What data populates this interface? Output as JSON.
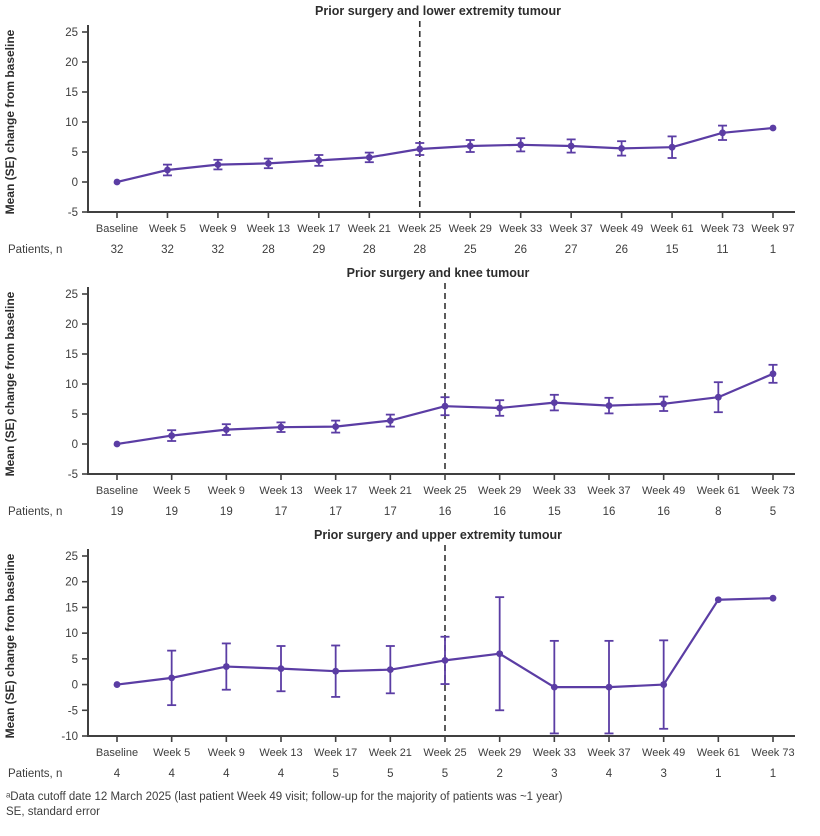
{
  "figure": {
    "ylabel": "Mean (SE) change from baseline",
    "patients_label": "Patients, n",
    "footnotes": [
      "ᵃData cutoff date 12 March 2025 (last patient Week 49 visit; follow-up for the majority of patients was ~1 year)",
      "SE, standard error"
    ],
    "colors": {
      "line": "#5b3da4",
      "axis": "#404040",
      "text": "#3d3d3d",
      "title": "#2d2d2d",
      "dash": "#333333"
    }
  },
  "chart_data": [
    {
      "type": "line",
      "title": "Prior surgery and lower extremity tumour",
      "ylabel": "Mean (SE) change from baseline",
      "ylim": [
        -5,
        25
      ],
      "ytick_step": 5,
      "grid": false,
      "legend": "none",
      "dashed_line_at": "Week 25",
      "categories": [
        "Baseline",
        "Week 5",
        "Week 9",
        "Week 13",
        "Week 17",
        "Week 21",
        "Week 25",
        "Week 29",
        "Week 33",
        "Week 37",
        "Week 49",
        "Week 61",
        "Week 73",
        "Week 97"
      ],
      "values": [
        0,
        2.0,
        2.9,
        3.1,
        3.6,
        4.1,
        5.5,
        6.0,
        6.2,
        6.0,
        5.6,
        5.8,
        8.2,
        9.0
      ],
      "se": [
        null,
        0.9,
        0.8,
        0.8,
        0.9,
        0.8,
        1.0,
        1.0,
        1.1,
        1.1,
        1.2,
        1.8,
        1.2,
        null
      ],
      "patients": [
        32,
        32,
        32,
        28,
        29,
        28,
        28,
        25,
        26,
        27,
        26,
        15,
        11,
        1
      ]
    },
    {
      "type": "line",
      "title": "Prior surgery and knee tumour",
      "ylabel": "Mean (SE) change from baseline",
      "ylim": [
        -5,
        25
      ],
      "ytick_step": 5,
      "grid": false,
      "legend": "none",
      "dashed_line_at": "Week 25",
      "categories": [
        "Baseline",
        "Week 5",
        "Week 9",
        "Week 13",
        "Week 17",
        "Week 21",
        "Week 25",
        "Week 29",
        "Week 33",
        "Week 37",
        "Week 49",
        "Week 61",
        "Week 73"
      ],
      "values": [
        0,
        1.4,
        2.4,
        2.8,
        2.9,
        3.9,
        6.3,
        6.0,
        6.9,
        6.4,
        6.7,
        7.8,
        11.7
      ],
      "se": [
        null,
        0.9,
        0.9,
        0.8,
        1.0,
        1.0,
        1.5,
        1.3,
        1.3,
        1.3,
        1.2,
        2.5,
        1.5
      ],
      "patients": [
        19,
        19,
        19,
        17,
        17,
        17,
        16,
        16,
        15,
        16,
        16,
        8,
        5
      ]
    },
    {
      "type": "line",
      "title": "Prior surgery and upper extremity tumour",
      "ylabel": "Mean (SE) change from baseline",
      "ylim": [
        -10,
        25
      ],
      "ytick_step": 5,
      "grid": false,
      "legend": "none",
      "dashed_line_at": "Week 25",
      "categories": [
        "Baseline",
        "Week 5",
        "Week 9",
        "Week 13",
        "Week 17",
        "Week 21",
        "Week 25",
        "Week 29",
        "Week 33",
        "Week 37",
        "Week 49",
        "Week 61",
        "Week 73"
      ],
      "values": [
        0,
        1.3,
        3.5,
        3.1,
        2.6,
        2.9,
        4.7,
        6.0,
        -0.5,
        -0.5,
        0.0,
        16.5,
        16.8
      ],
      "se": [
        null,
        5.3,
        4.5,
        4.4,
        5.0,
        4.6,
        4.6,
        11.0,
        9.0,
        9.0,
        8.6,
        null,
        null
      ],
      "patients": [
        4,
        4,
        4,
        4,
        5,
        5,
        5,
        2,
        3,
        4,
        3,
        1,
        1
      ]
    }
  ]
}
